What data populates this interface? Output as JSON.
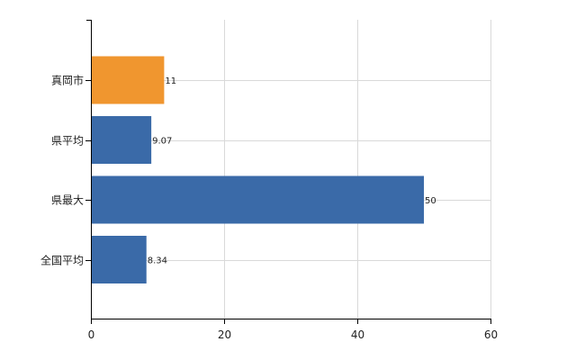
{
  "chart_data": {
    "type": "bar",
    "orientation": "horizontal",
    "categories": [
      "真岡市",
      "県平均",
      "県最大",
      "全国平均"
    ],
    "values": [
      11,
      9.07,
      50,
      8.34
    ],
    "value_labels": [
      "11",
      "9.07",
      "50",
      "8.34"
    ],
    "colors": [
      "#f0962f",
      "#3a6aa8",
      "#3a6aa8",
      "#3a6aa8"
    ],
    "xlim": [
      0,
      60
    ],
    "xticks": [
      0,
      20,
      40,
      60
    ],
    "grid": true,
    "legend": "none",
    "title": "",
    "xlabel": "",
    "ylabel": ""
  }
}
